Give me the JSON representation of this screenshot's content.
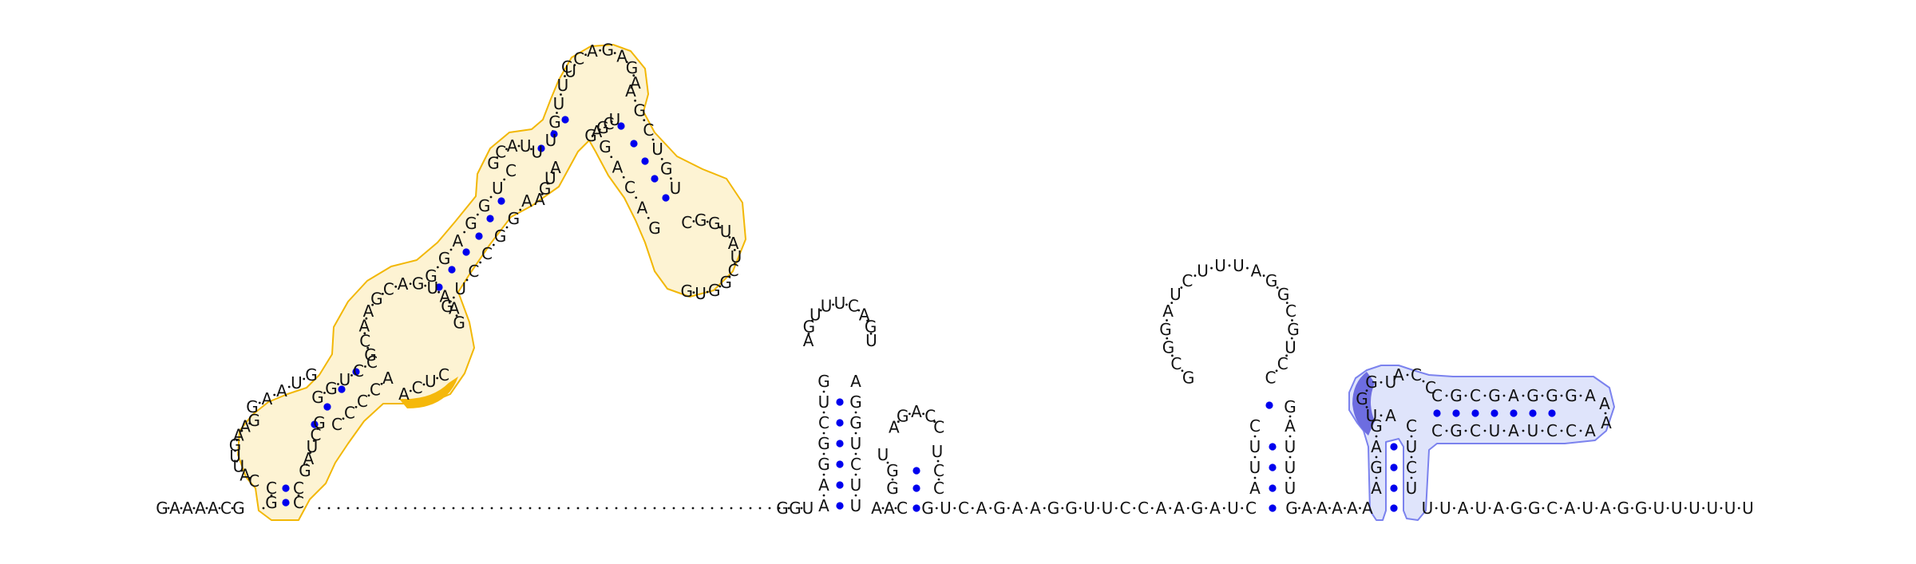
{
  "colors": {
    "ink": "#111111",
    "pair_dot": "#0000ee",
    "left_highlight_stroke": "#f2b705",
    "left_highlight_fill": "#fdf3d3",
    "left_accent": "#f5b80a",
    "right_highlight_stroke": "#7b82ee",
    "right_highlight_fill": "#dfe4fb",
    "right_accent": "#6d6de0"
  },
  "strands": {
    "five_prime": "GAAAACG",
    "dotted_gap_marker": ".",
    "hairpin1_stem_5": "GGUAAAC",
    "hairpin1_stem_3": "GUUUCUGG",
    "hairpin1_loop": "GAGUUUCAGUA",
    "hairpin2_stem_5": "AUGG",
    "hairpin2_stem_3": "CCG",
    "hairpin2_loop": "UGACCU",
    "linker1": "GUCAGAAGGUUCCAAGAUC",
    "hairpin3_stem_5": "AUCC",
    "hairpin3_stem_3": "GGUUUA",
    "hairpin3_loop": "GCGGAUCUUUAGGCGUCCAG",
    "linker2": "GAAAAA",
    "pseudoknot_stem_5": "GAGGGAGCG",
    "pseudoknot_stem_3": "CGCUAUCCA",
    "pseudoknot_loop_left": "UGGUACC",
    "pseudoknot_loop_right": "AA",
    "three_prime": "UUAUAGGCAUAGGUUUUUU"
  },
  "left_domain": {
    "outer_loop_seq": "GAAUGGUACAAGCAGUAAGGUCCGUCAUUGUCAGAGAGCUGUCCGGUAUCGGUGGAGCA",
    "inner_pairs": 14
  }
}
